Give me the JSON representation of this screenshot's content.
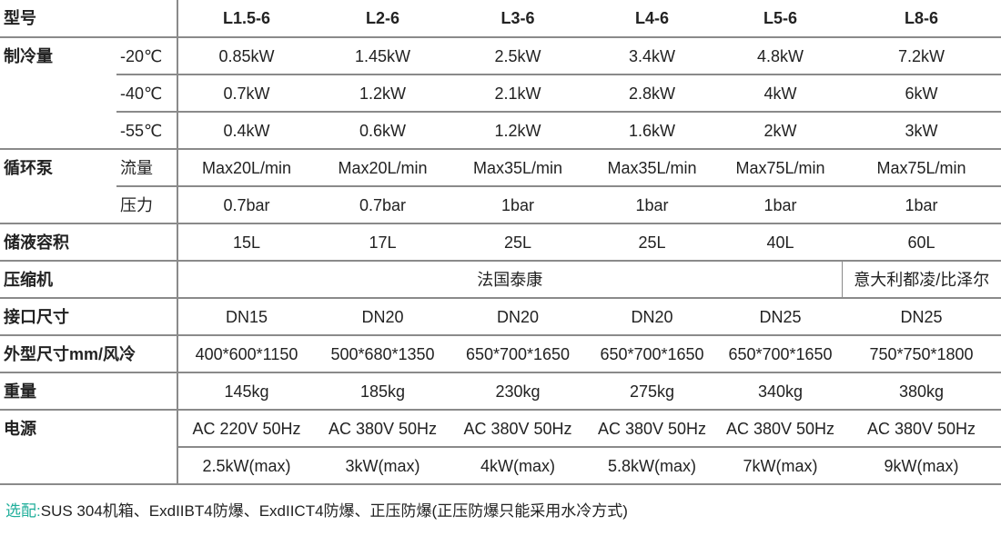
{
  "header": {
    "label": "型号",
    "models": [
      "L1.5-6",
      "L2-6",
      "L3-6",
      "L4-6",
      "L5-6",
      "L8-6"
    ]
  },
  "groups": [
    {
      "label": "制冷量",
      "rows": [
        {
          "sub": "-20℃",
          "values": [
            "0.85kW",
            "1.45kW",
            "2.5kW",
            "3.4kW",
            "4.8kW",
            "7.2kW"
          ]
        },
        {
          "sub": "-40℃",
          "values": [
            "0.7kW",
            "1.2kW",
            "2.1kW",
            "2.8kW",
            "4kW",
            "6kW"
          ]
        },
        {
          "sub": "-55℃",
          "values": [
            "0.4kW",
            "0.6kW",
            "1.2kW",
            "1.6kW",
            "2kW",
            "3kW"
          ]
        }
      ]
    },
    {
      "label": "循环泵",
      "rows": [
        {
          "sub": "流量",
          "values": [
            "Max20L/min",
            "Max20L/min",
            "Max35L/min",
            "Max35L/min",
            "Max75L/min",
            "Max75L/min"
          ]
        },
        {
          "sub": "压力",
          "values": [
            "0.7bar",
            "0.7bar",
            "1bar",
            "1bar",
            "1bar",
            "1bar"
          ]
        }
      ]
    },
    {
      "label": "储液容积",
      "rows": [
        {
          "sub": "",
          "values": [
            "15L",
            "17L",
            "25L",
            "25L",
            "40L",
            "60L"
          ]
        }
      ]
    },
    {
      "label": "压缩机",
      "rows": [
        {
          "sub": "",
          "values": [
            "法国泰康",
            "意大利都凌/比泽尔"
          ],
          "spans": [
            5,
            1
          ]
        }
      ]
    },
    {
      "label": "接口尺寸",
      "rows": [
        {
          "sub": "",
          "values": [
            "DN15",
            "DN20",
            "DN20",
            "DN20",
            "DN25",
            "DN25"
          ]
        }
      ]
    },
    {
      "label": "外型尺寸mm/风冷",
      "rows": [
        {
          "sub": "",
          "values": [
            "400*600*1150",
            "500*680*1350",
            "650*700*1650",
            "650*700*1650",
            "650*700*1650",
            "750*750*1800"
          ]
        }
      ]
    },
    {
      "label": "重量",
      "rows": [
        {
          "sub": "",
          "values": [
            "145kg",
            "185kg",
            "230kg",
            "275kg",
            "340kg",
            "380kg"
          ]
        }
      ]
    },
    {
      "label": "电源",
      "rows": [
        {
          "sub": "",
          "values": [
            "AC 220V 50Hz",
            "AC 380V 50Hz",
            "AC 380V 50Hz",
            "AC 380V 50Hz",
            "AC 380V 50Hz",
            "AC 380V 50Hz"
          ]
        },
        {
          "sub": "",
          "values": [
            "2.5kW(max)",
            "3kW(max)",
            "4kW(max)",
            "5.8kW(max)",
            "7kW(max)",
            "9kW(max)"
          ]
        }
      ]
    }
  ],
  "footnote": {
    "tag": "选配:",
    "text": "SUS 304机箱、ExdIIBT4防爆、ExdIICT4防爆、正压防爆(正压防爆只能采用水冷方式)"
  }
}
